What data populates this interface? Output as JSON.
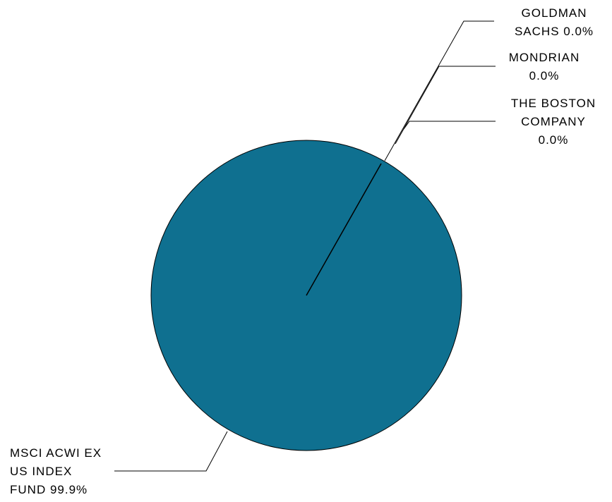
{
  "chart_data": {
    "type": "pie",
    "slices": [
      {
        "label_lines": [
          "MSCI ACWI EX",
          "US INDEX",
          "FUND 99.9%"
        ],
        "value": 99.9
      },
      {
        "label_lines": [
          "GOLDMAN",
          "SACHS 0.0%"
        ],
        "value": 0.0
      },
      {
        "label_lines": [
          "MONDRIAN",
          "0.0%"
        ],
        "value": 0.0
      },
      {
        "label_lines": [
          "THE BOSTON",
          "COMPANY",
          "0.0%"
        ],
        "value": 0.0
      }
    ],
    "colors": {
      "main_slice": "#0f7090",
      "outline": "#000000",
      "leader": "#000000"
    }
  }
}
